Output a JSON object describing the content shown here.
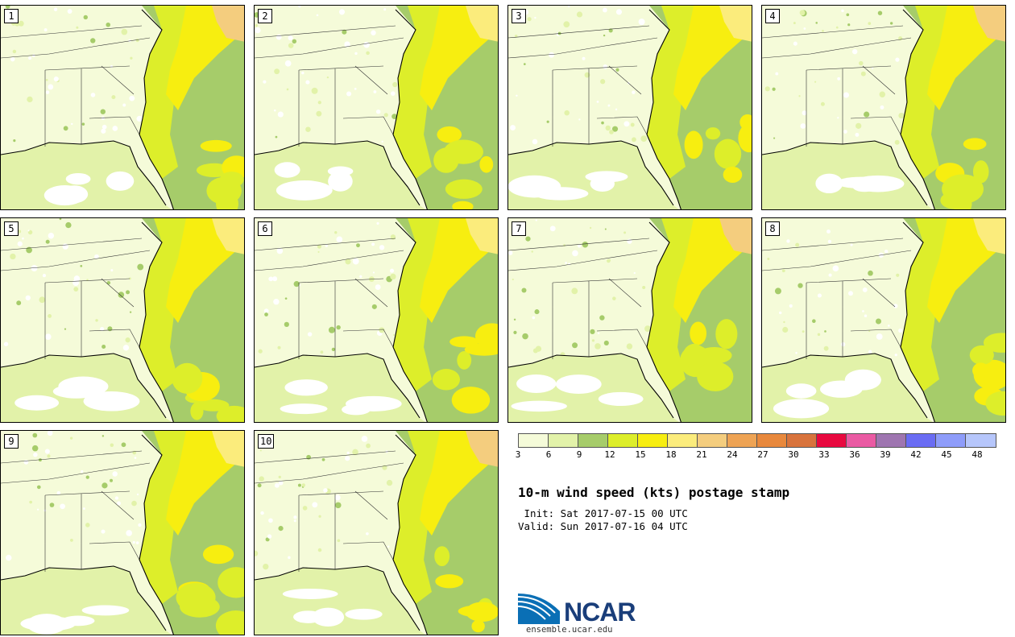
{
  "title": "10-m wind speed (kts) postage stamp",
  "init": " Init: Sat 2017-07-15 00 UTC",
  "valid": "Valid: Sun 2017-07-16 04 UTC",
  "members": [
    "1",
    "2",
    "3",
    "4",
    "5",
    "6",
    "7",
    "8",
    "9",
    "10"
  ],
  "colorbar": {
    "ticks": [
      "3",
      "6",
      "9",
      "12",
      "15",
      "18",
      "21",
      "24",
      "27",
      "30",
      "33",
      "36",
      "39",
      "42",
      "45",
      "48"
    ],
    "colors": [
      "#f5fbd9",
      "#e2f2a9",
      "#a6cc6a",
      "#ddee2a",
      "#f7ee10",
      "#fbec7c",
      "#f4cd7e",
      "#eea354",
      "#e8883c",
      "#d8733c",
      "#e8093f",
      "#ea5aa3",
      "#9e75b0",
      "#6a6cf3",
      "#8e9cfa",
      "#b6c6fb"
    ],
    "label_order_note": ""
  },
  "logo": {
    "text": "NCAR",
    "url": "ensemble.ucar.edu"
  }
}
